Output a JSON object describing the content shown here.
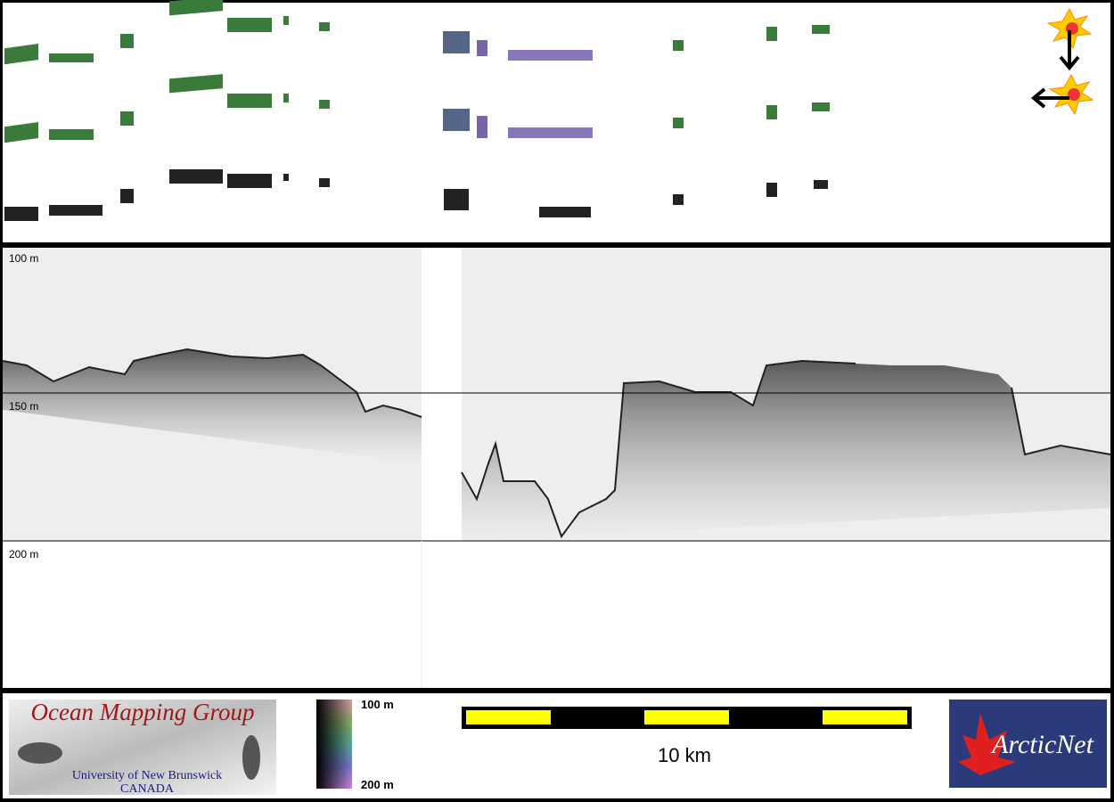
{
  "depth_axis": {
    "labels": [
      "100 m",
      "150 m",
      "200 m"
    ]
  },
  "legend": {
    "color_bar": {
      "top": "100 m",
      "bottom": "200 m"
    },
    "scale_bar": {
      "label": "10 km"
    }
  },
  "logos": {
    "omg": {
      "title": "Ocean Mapping Group",
      "subtitle": "University of New Brunswick",
      "country": "CANADA"
    },
    "arcticnet": {
      "name": "ArcticNet"
    }
  }
}
